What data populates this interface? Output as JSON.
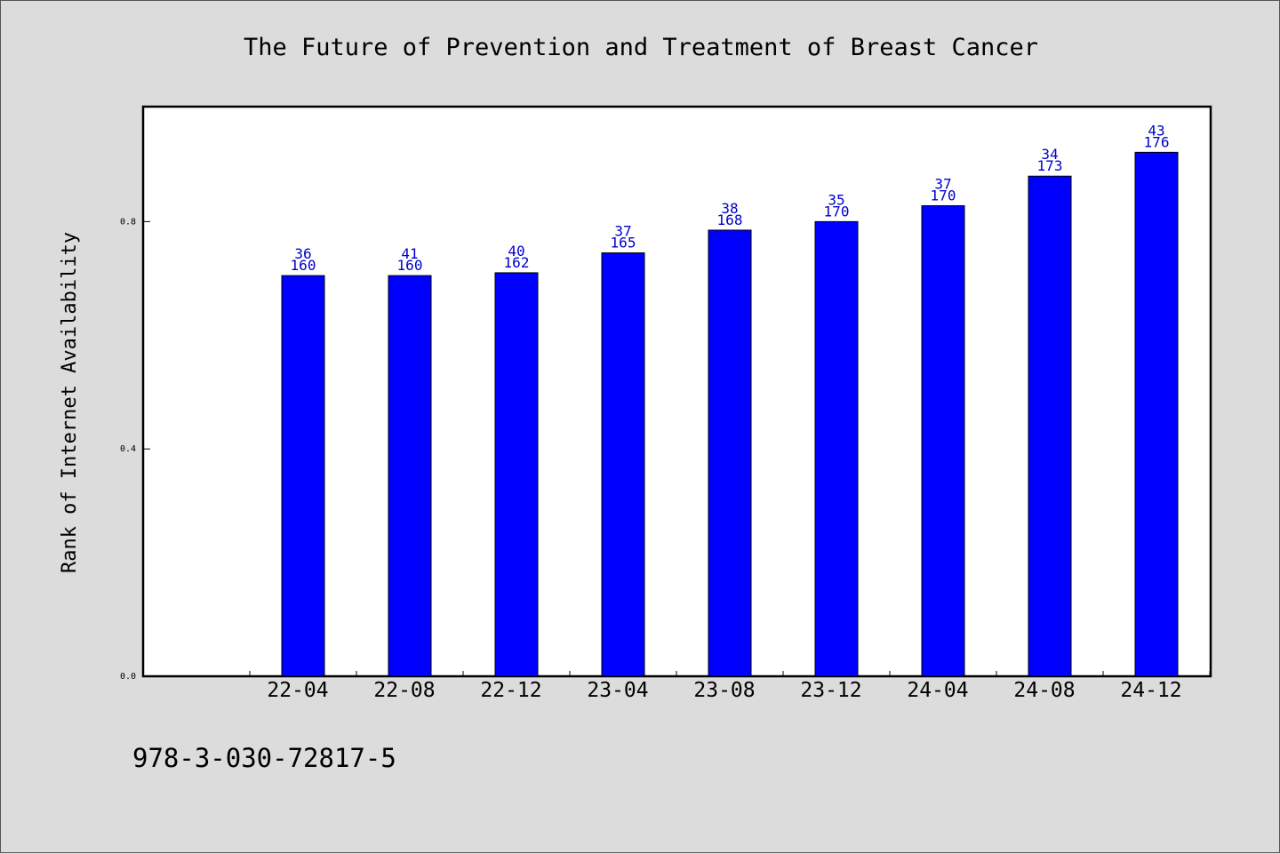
{
  "chart_data": {
    "type": "bar",
    "title": "The Future of Prevention and Treatment of Breast Cancer",
    "ylabel": "Rank of Internet Availability",
    "xlabel": "",
    "ylim": [
      0.0,
      1.0
    ],
    "yticks": [
      "0.0",
      "0.4",
      "0.8"
    ],
    "categories": [
      "22-04",
      "22-08",
      "22-12",
      "23-04",
      "23-08",
      "23-12",
      "24-04",
      "24-08",
      "24-12"
    ],
    "values": [
      0.705,
      0.705,
      0.71,
      0.745,
      0.785,
      0.8,
      0.828,
      0.88,
      0.922
    ],
    "label_top": [
      "36",
      "41",
      "40",
      "37",
      "38",
      "35",
      "37",
      "34",
      "43"
    ],
    "label_bottom": [
      "160",
      "160",
      "162",
      "165",
      "168",
      "170",
      "170",
      "173",
      "176"
    ],
    "bar_color": "#0000ff",
    "label_color": "#0000cc",
    "grid": false,
    "legend": "none"
  },
  "footer": {
    "isbn": "978-3-030-72817-5"
  }
}
